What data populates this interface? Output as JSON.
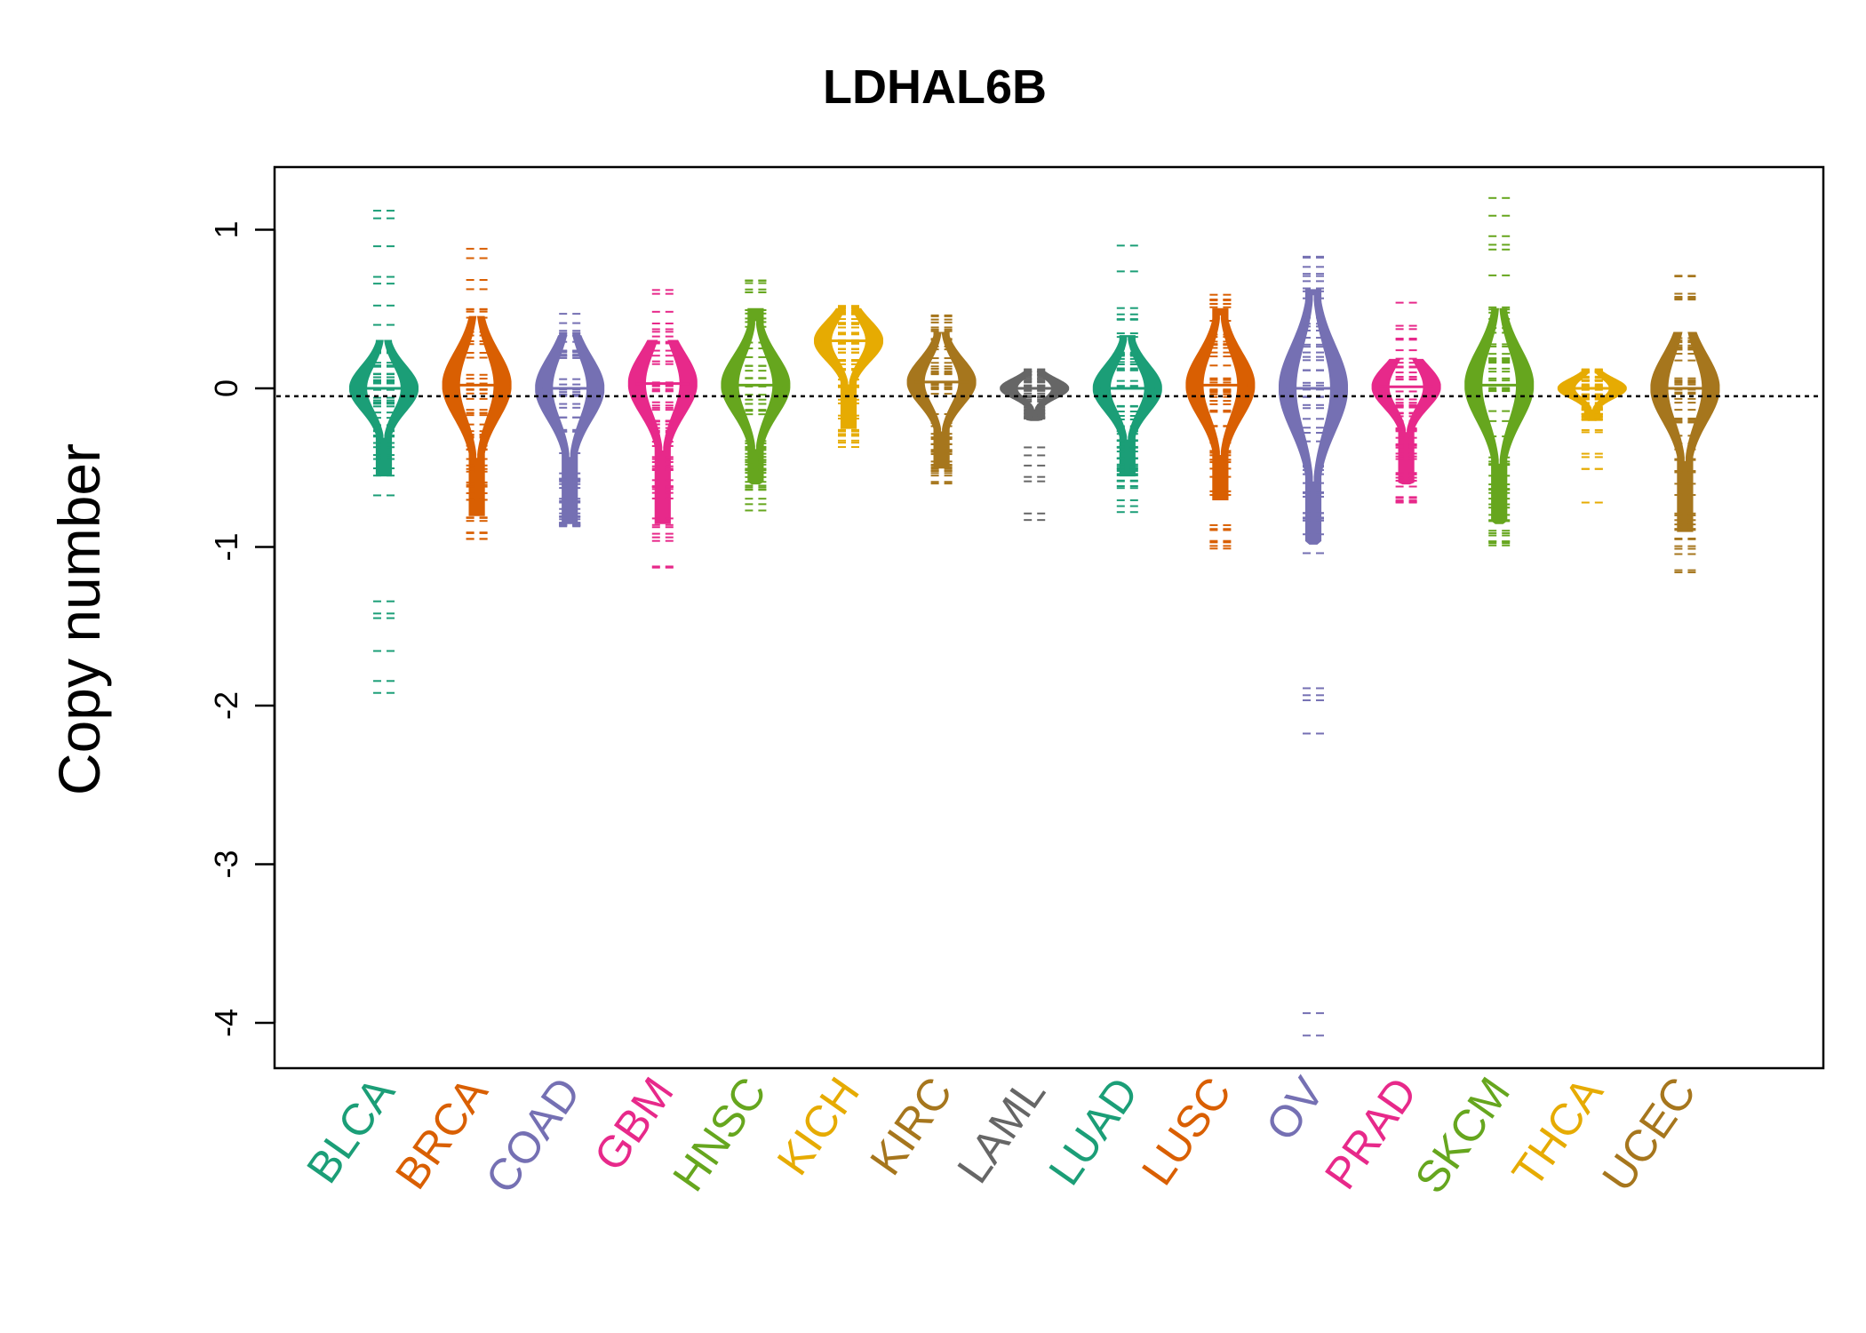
{
  "chart_data": {
    "type": "beanplot",
    "title": "LDHAL6B",
    "xlabel": "",
    "ylabel": "Copy number",
    "ylim": [
      -4.3,
      1.4
    ],
    "yticks": [
      1,
      0,
      -1,
      -2,
      -3,
      -4
    ],
    "ytick_labels": [
      "1",
      "0",
      "-1",
      "-2",
      "-3",
      "-4"
    ],
    "reference_line": -0.05,
    "grid": false,
    "legend": "none",
    "categories": [
      "BLCA",
      "BRCA",
      "COAD",
      "GBM",
      "HNSC",
      "KICH",
      "KIRC",
      "LAML",
      "LUAD",
      "LUSC",
      "OV",
      "PRAD",
      "SKCM",
      "THCA",
      "UCEC"
    ],
    "colors": [
      "#1b9e77",
      "#d95f02",
      "#7570b3",
      "#e7298a",
      "#66a61e",
      "#e6ab02",
      "#a6761d",
      "#666666",
      "#1b9e77",
      "#d95f02",
      "#7570b3",
      "#e7298a",
      "#66a61e",
      "#e6ab02",
      "#a6761d"
    ],
    "series": [
      {
        "category": "BLCA",
        "median": 0.0,
        "min": -1.92,
        "max": 1.12,
        "q_low": -0.55,
        "q_high": 0.3
      },
      {
        "category": "BRCA",
        "median": 0.02,
        "min": -0.95,
        "max": 0.88,
        "q_low": -0.8,
        "q_high": 0.45
      },
      {
        "category": "COAD",
        "median": 0.0,
        "min": -0.87,
        "max": 0.47,
        "q_low": -0.85,
        "q_high": 0.33
      },
      {
        "category": "GBM",
        "median": 0.03,
        "min": -1.13,
        "max": 0.62,
        "q_low": -0.85,
        "q_high": 0.3
      },
      {
        "category": "HNSC",
        "median": 0.02,
        "min": -0.77,
        "max": 0.68,
        "q_low": -0.6,
        "q_high": 0.5
      },
      {
        "category": "KICH",
        "median": 0.3,
        "min": -0.37,
        "max": 0.52,
        "q_low": -0.25,
        "q_high": 0.5
      },
      {
        "category": "KIRC",
        "median": 0.04,
        "min": -0.6,
        "max": 0.46,
        "q_low": -0.5,
        "q_high": 0.35
      },
      {
        "category": "LAML",
        "median": 0.0,
        "min": -0.83,
        "max": 0.12,
        "q_low": -0.2,
        "q_high": 0.1
      },
      {
        "category": "LUAD",
        "median": 0.0,
        "min": -0.78,
        "max": 0.9,
        "q_low": -0.55,
        "q_high": 0.33
      },
      {
        "category": "LUSC",
        "median": 0.02,
        "min": -1.01,
        "max": 0.59,
        "q_low": -0.7,
        "q_high": 0.5
      },
      {
        "category": "OV",
        "median": 0.0,
        "min": -4.08,
        "max": 0.83,
        "q_low": -0.98,
        "q_high": 0.62
      },
      {
        "category": "PRAD",
        "median": 0.01,
        "min": -0.72,
        "max": 0.54,
        "q_low": -0.6,
        "q_high": 0.18
      },
      {
        "category": "SKCM",
        "median": 0.02,
        "min": -0.99,
        "max": 1.2,
        "q_low": -0.85,
        "q_high": 0.5
      },
      {
        "category": "THCA",
        "median": 0.0,
        "min": -0.72,
        "max": 0.12,
        "q_low": -0.2,
        "q_high": 0.1
      },
      {
        "category": "UCEC",
        "median": 0.0,
        "min": -1.16,
        "max": 0.71,
        "q_low": -0.9,
        "q_high": 0.35
      }
    ]
  }
}
